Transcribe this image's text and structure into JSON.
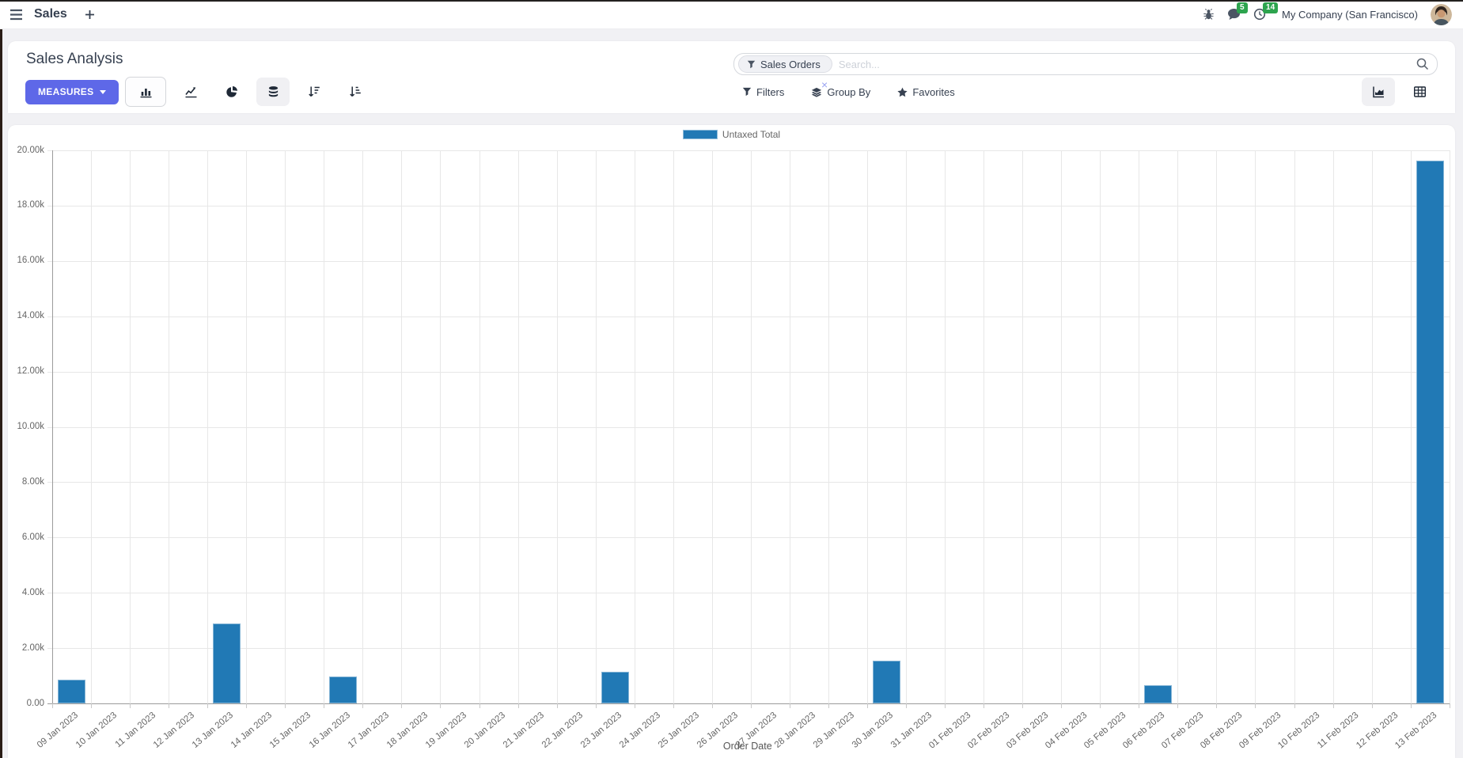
{
  "navbar": {
    "app_title": "Sales",
    "company": "My Company (San Francisco)",
    "badges": {
      "messages": "5",
      "activities": "14"
    },
    "icons": [
      "menu-icon",
      "plus-icon",
      "bug-icon",
      "chat-icon",
      "clock-icon",
      "avatar"
    ]
  },
  "control_panel": {
    "breadcrumb_title": "Sales Analysis",
    "measures_button": "MEASURES",
    "search": {
      "facet": "Sales Orders",
      "facet_remove": "×",
      "placeholder": "Search..."
    },
    "buttons": {
      "filters": "Filters",
      "group_by": "Group By",
      "favorites": "Favorites"
    },
    "view_type_icons": [
      "bar-chart-icon",
      "line-chart-icon",
      "pie-chart-icon",
      "stacked-icon",
      "sort-desc-icon",
      "sort-asc-icon"
    ],
    "view_switcher_icons": [
      "area-chart-icon",
      "pivot-icon"
    ],
    "misc_icons": [
      "filter-icon",
      "layers-icon",
      "star-icon",
      "search-icon"
    ]
  },
  "chart_data": {
    "type": "bar",
    "title": "",
    "xlabel": "Order Date",
    "ylabel": "",
    "ylim": [
      0,
      20000
    ],
    "ytick_step": 2000,
    "ytick_labels": [
      "0.00",
      "2.00k",
      "4.00k",
      "6.00k",
      "8.00k",
      "10.00k",
      "12.00k",
      "14.00k",
      "16.00k",
      "18.00k",
      "20.00k"
    ],
    "grid": true,
    "legend_position": "top",
    "categories": [
      "09 Jan 2023",
      "10 Jan 2023",
      "11 Jan 2023",
      "12 Jan 2023",
      "13 Jan 2023",
      "14 Jan 2023",
      "15 Jan 2023",
      "16 Jan 2023",
      "17 Jan 2023",
      "18 Jan 2023",
      "19 Jan 2023",
      "20 Jan 2023",
      "21 Jan 2023",
      "22 Jan 2023",
      "23 Jan 2023",
      "24 Jan 2023",
      "25 Jan 2023",
      "26 Jan 2023",
      "27 Jan 2023",
      "28 Jan 2023",
      "29 Jan 2023",
      "30 Jan 2023",
      "31 Jan 2023",
      "01 Feb 2023",
      "02 Feb 2023",
      "03 Feb 2023",
      "04 Feb 2023",
      "05 Feb 2023",
      "06 Feb 2023",
      "07 Feb 2023",
      "08 Feb 2023",
      "09 Feb 2023",
      "10 Feb 2023",
      "11 Feb 2023",
      "12 Feb 2023",
      "13 Feb 2023"
    ],
    "series": [
      {
        "name": "Untaxed Total",
        "color": "#2179b5",
        "values": [
          850,
          0,
          0,
          0,
          2900,
          0,
          0,
          975,
          0,
          0,
          0,
          0,
          0,
          0,
          1150,
          0,
          0,
          0,
          0,
          0,
          0,
          1550,
          0,
          0,
          0,
          0,
          0,
          0,
          670,
          0,
          0,
          0,
          0,
          0,
          0,
          19620
        ]
      }
    ]
  },
  "colors": {
    "accent": "#5e68e8",
    "bar": "#2179b5",
    "badge_green": "#2da44e",
    "background": "#f1f1f4",
    "grid": "#e7e7e7",
    "axis": "#9b9b9b"
  }
}
